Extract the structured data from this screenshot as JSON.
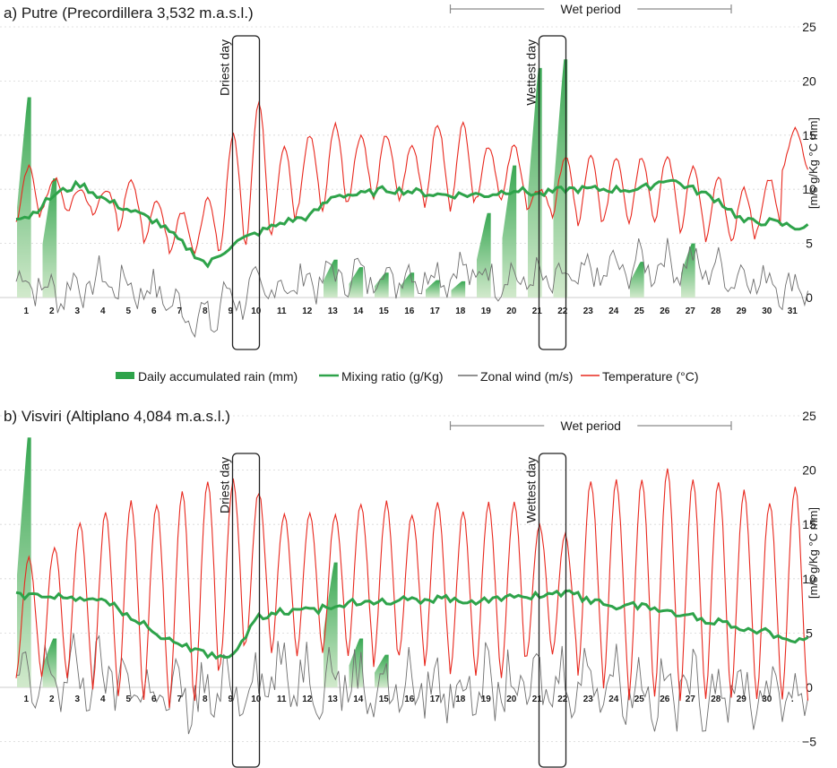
{
  "colors": {
    "temperature": "#e8281e",
    "mixing": "#2ea34a",
    "wind": "#6f6f6f",
    "rain_dark": "#2ea34a",
    "rain_light": "#cfe8c9",
    "grid": "#d6d6d6",
    "box": "#222222"
  },
  "legend": {
    "rain": "Daily accumulated rain (mm)",
    "mixing": "Mixing ratio (g/Kg)",
    "wind": "Zonal wind (m/s)",
    "temp": "Temperature (°C)"
  },
  "chart_data": [
    {
      "type": "line",
      "title": "a) Putre (Precordillera 3,532 m.a.s.l.)",
      "ylabel": "[m/s  g/Kg  °C  mm]",
      "ylim": [
        0,
        25
      ],
      "y_ticks": [
        "0",
        "5",
        "10",
        "15",
        "20",
        "25"
      ],
      "x_ticks": [
        "1",
        "2",
        "3",
        "4",
        "5",
        "6",
        "7",
        "8",
        "9",
        "10",
        "11",
        "12",
        "13",
        "14",
        "15",
        "16",
        "17",
        "18",
        "19",
        "20",
        "21",
        "22",
        "23",
        "24",
        "25",
        "26",
        "27",
        "28",
        "29",
        "30",
        "31"
      ],
      "grid": true,
      "wet_period": {
        "label": "Wet period",
        "from_day": 17.5,
        "to_day": 28.5
      },
      "annotations": [
        {
          "label": "Driest day",
          "day": 9.5
        },
        {
          "label": "Wettest day",
          "day": 21.5
        }
      ],
      "series": [
        {
          "name": "Daily accumulated rain (mm)",
          "key": "rain",
          "values": [
            18.5,
            11,
            0,
            0,
            0,
            0,
            0,
            0,
            0,
            0,
            0,
            0,
            3.5,
            2.8,
            2.3,
            2.3,
            1.6,
            1.5,
            7.8,
            12.2,
            21.2,
            22,
            0,
            0,
            3.3,
            0,
            5,
            0,
            0,
            0,
            0
          ]
        },
        {
          "name": "Mixing ratio (g/Kg)",
          "key": "mixing",
          "values": [
            7.5,
            9.5,
            10.5,
            9,
            8,
            7,
            5,
            3,
            5,
            6,
            7,
            7.5,
            9.5,
            9.5,
            10,
            9.8,
            9.5,
            9.5,
            9.5,
            10,
            9.5,
            10,
            10,
            10,
            10,
            11,
            10,
            9,
            7,
            7,
            6.5
          ]
        },
        {
          "name": "Zonal wind (m/s)",
          "key": "wind",
          "daily_amplitude": 1.8,
          "values": [
            1.5,
            0.5,
            1,
            1.5,
            1,
            0.5,
            -1,
            -2,
            0,
            0.5,
            1,
            1.5,
            2,
            2,
            2,
            2,
            2.2,
            2.4,
            2,
            1.8,
            1.5,
            1.4,
            2,
            2.5,
            3,
            3.2,
            3,
            2.5,
            2,
            1.5,
            1
          ]
        },
        {
          "name": "Temperature (°C)",
          "key": "temp",
          "daily_min": [
            7,
            8,
            8,
            7.5,
            6,
            5,
            4,
            4,
            4.5,
            5,
            6,
            8,
            8,
            9,
            9,
            9,
            8.5,
            8,
            9,
            9,
            8,
            7.5,
            6.5,
            7,
            7,
            7,
            6,
            5,
            5,
            6,
            12
          ],
          "daily_max": [
            12,
            11,
            10,
            10,
            11,
            9,
            8,
            9,
            15,
            18,
            14,
            15,
            16,
            15,
            15,
            14,
            16,
            16,
            14,
            14,
            10,
            13,
            13,
            13,
            13,
            13,
            12,
            11,
            10,
            11,
            15.5
          ]
        }
      ]
    },
    {
      "type": "line",
      "title": "b) Visviri (Altiplano 4,084 m.a.s.l.)",
      "ylabel": "[m/s  g/Kg  °C  mm]",
      "ylim": [
        -5,
        25
      ],
      "y_ticks": [
        "−5",
        "0",
        "5",
        "10",
        "15",
        "20",
        "25"
      ],
      "x_ticks": [
        "1",
        "2",
        "3",
        "4",
        "5",
        "6",
        "7",
        "8",
        "9",
        "10",
        "11",
        "12",
        "13",
        "14",
        "15",
        "16",
        "17",
        "18",
        "19",
        "20",
        "21",
        "22",
        "23",
        "24",
        "25",
        "26",
        "27",
        "28",
        "29",
        "30",
        "."
      ],
      "grid": true,
      "wet_period": {
        "label": "Wet period",
        "from_day": 17.5,
        "to_day": 28.5
      },
      "annotations": [
        {
          "label": "Driest day",
          "day": 9.5
        },
        {
          "label": "Wettest day",
          "day": 21.5
        }
      ],
      "series": [
        {
          "name": "Daily accumulated rain (mm)",
          "key": "rain",
          "values": [
            23,
            4.5,
            0,
            0,
            0,
            0,
            0,
            0,
            0,
            0,
            0,
            0,
            11.5,
            4.5,
            3,
            0,
            0,
            0,
            0,
            0,
            0,
            0,
            0,
            0,
            0,
            0,
            0,
            0,
            0,
            0,
            0
          ]
        },
        {
          "name": "Mixing ratio (g/Kg)",
          "key": "mixing",
          "values": [
            8.5,
            8.5,
            8,
            8,
            6.5,
            5,
            4,
            3,
            3,
            6.5,
            7,
            7,
            7.5,
            8,
            8,
            8,
            8.2,
            8,
            8,
            8.3,
            8.5,
            8.8,
            8,
            7.5,
            7.5,
            7,
            6.5,
            6,
            5.5,
            5,
            4.5
          ]
        },
        {
          "name": "Zonal wind (m/s)",
          "key": "wind",
          "daily_amplitude": 3,
          "values": [
            0,
            1,
            1,
            1,
            0.5,
            -0.5,
            -1,
            -1,
            0,
            1,
            1,
            1,
            1,
            0.5,
            0,
            0,
            0,
            0,
            0,
            0,
            0,
            0.5,
            1,
            0.5,
            0,
            -0.5,
            0,
            0,
            -0.5,
            -0.5,
            -0.5
          ]
        },
        {
          "name": "Temperature (°C)",
          "key": "temp",
          "daily_min": [
            1,
            1,
            1,
            0,
            -1,
            -1,
            -2,
            -1,
            2,
            4,
            3,
            3,
            3,
            3,
            2,
            3,
            2,
            1,
            1,
            1,
            3,
            3,
            1,
            0,
            -1,
            -1,
            -1,
            -1,
            -1,
            -1,
            -1
          ],
          "daily_max": [
            12,
            13,
            15,
            16,
            17,
            17,
            18,
            19,
            19,
            18,
            16,
            16,
            16,
            17,
            17,
            16,
            17,
            16,
            17,
            17,
            15,
            14,
            19,
            19,
            19,
            20,
            19,
            19,
            18,
            17,
            18.5
          ]
        }
      ]
    }
  ]
}
